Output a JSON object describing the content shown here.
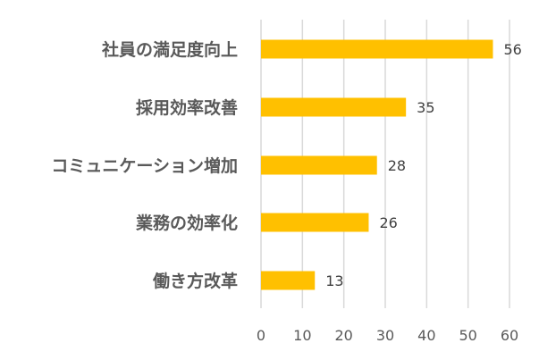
{
  "chart_data": {
    "type": "bar",
    "orientation": "horizontal",
    "categories": [
      "社員の満足度向上",
      "採用効率改善",
      "コミュニケーション増加",
      "業務の効率化",
      "働き方改革"
    ],
    "values": [
      56,
      35,
      28,
      26,
      13
    ],
    "data_labels": [
      "56",
      "35",
      "28",
      "26",
      "13"
    ],
    "xlim": [
      0,
      60
    ],
    "x_ticks": [
      0,
      10,
      20,
      30,
      40,
      50,
      60
    ],
    "x_tick_labels": [
      "0",
      "10",
      "20",
      "30",
      "40",
      "50",
      "60"
    ],
    "grid": "vertical",
    "legend": "none",
    "title": "",
    "xlabel": "",
    "ylabel": ""
  },
  "colors": {
    "bar": "#ffc000",
    "grid": "#d9d9d9",
    "axis": "#d9d9d9"
  }
}
